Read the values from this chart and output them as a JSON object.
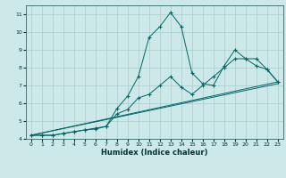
{
  "xlabel": "Humidex (Indice chaleur)",
  "bg_color": "#cce8e8",
  "grid_color": "#aacccc",
  "line_color": "#006666",
  "xlim": [
    -0.5,
    23.5
  ],
  "ylim": [
    4,
    11.5
  ],
  "xticks": [
    0,
    1,
    2,
    3,
    4,
    5,
    6,
    7,
    8,
    9,
    10,
    11,
    12,
    13,
    14,
    15,
    16,
    17,
    18,
    19,
    20,
    21,
    22,
    23
  ],
  "yticks": [
    4,
    5,
    6,
    7,
    8,
    9,
    10,
    11
  ],
  "line1": {
    "x": [
      0,
      1,
      2,
      3,
      4,
      5,
      6,
      7,
      8,
      9,
      10,
      11,
      12,
      13,
      14,
      15,
      16,
      17,
      18,
      19,
      20,
      21,
      22,
      23
    ],
    "y": [
      4.2,
      4.2,
      4.2,
      4.3,
      4.4,
      4.5,
      4.6,
      4.7,
      5.7,
      6.4,
      7.5,
      9.7,
      10.3,
      11.1,
      10.3,
      7.7,
      7.1,
      7.0,
      8.1,
      9.0,
      8.5,
      8.5,
      7.9,
      7.2
    ]
  },
  "line2": {
    "x": [
      0,
      1,
      2,
      3,
      4,
      5,
      6,
      7,
      8,
      9,
      10,
      11,
      12,
      13,
      14,
      15,
      16,
      17,
      18,
      19,
      20,
      21,
      22,
      23
    ],
    "y": [
      4.2,
      4.2,
      4.2,
      4.3,
      4.4,
      4.5,
      4.55,
      4.7,
      5.4,
      5.65,
      6.3,
      6.5,
      7.0,
      7.5,
      6.9,
      6.5,
      7.0,
      7.5,
      8.0,
      8.5,
      8.5,
      8.1,
      7.9,
      7.2
    ]
  },
  "refline1": {
    "x": [
      0,
      23
    ],
    "y": [
      4.2,
      7.2
    ]
  },
  "refline2": {
    "x": [
      0,
      23
    ],
    "y": [
      4.2,
      7.1
    ]
  }
}
